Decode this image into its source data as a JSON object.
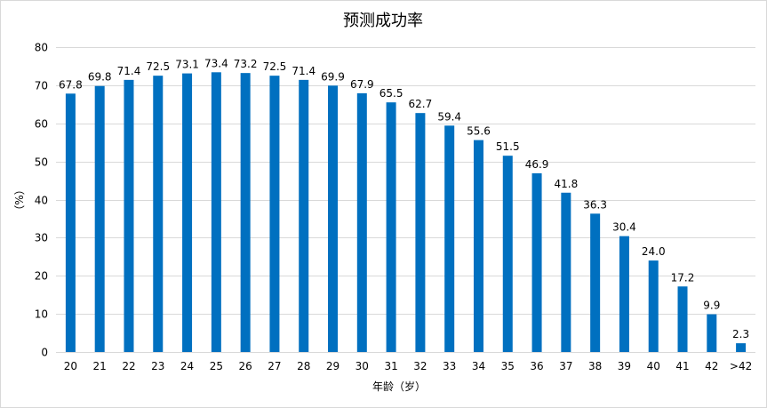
{
  "chart_data": {
    "type": "bar",
    "title": "预测成功率",
    "xlabel": "年龄（岁）",
    "ylabel": "（%）",
    "ylim": [
      0,
      80
    ],
    "yticks": [
      0,
      10,
      20,
      30,
      40,
      50,
      60,
      70,
      80
    ],
    "grid": true,
    "legend": "none",
    "bar_color": "#0070c0",
    "categories": [
      "20",
      "21",
      "22",
      "23",
      "24",
      "25",
      "26",
      "27",
      "28",
      "29",
      "30",
      "31",
      "32",
      "33",
      "34",
      "35",
      "36",
      "37",
      "38",
      "39",
      "40",
      "41",
      "42",
      ">42"
    ],
    "values": [
      67.8,
      69.8,
      71.4,
      72.5,
      73.1,
      73.4,
      73.2,
      72.5,
      71.4,
      69.9,
      67.9,
      65.5,
      62.7,
      59.4,
      55.6,
      51.5,
      46.9,
      41.8,
      36.3,
      30.4,
      24.0,
      17.2,
      9.9,
      2.3
    ],
    "data_labels": [
      "67.8",
      "69.8",
      "71.4",
      "72.5",
      "73.1",
      "73.4",
      "73.2",
      "72.5",
      "71.4",
      "69.9",
      "67.9",
      "65.5",
      "62.7",
      "59.4",
      "55.6",
      "51.5",
      "46.9",
      "41.8",
      "36.3",
      "30.4",
      "24.0",
      "17.2",
      "9.9",
      "2.3"
    ]
  }
}
